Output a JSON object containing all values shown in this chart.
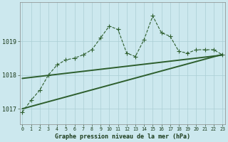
{
  "title": "Graphe pression niveau de la mer (hPa)",
  "xlabel_hours": [
    0,
    1,
    2,
    3,
    4,
    5,
    6,
    7,
    8,
    9,
    10,
    11,
    12,
    13,
    14,
    15,
    16,
    17,
    18,
    19,
    20,
    21,
    22,
    23
  ],
  "pressure_main": [
    1016.9,
    1017.25,
    1017.55,
    1018.0,
    1018.3,
    1018.45,
    1018.5,
    1018.6,
    1018.75,
    1019.1,
    1019.45,
    1019.35,
    1018.65,
    1018.55,
    1019.05,
    1019.75,
    1019.25,
    1019.15,
    1018.7,
    1018.65,
    1018.75,
    1018.75,
    1018.75,
    1018.6
  ],
  "pressure_line1": [
    1017.0,
    1017.07,
    1017.14,
    1017.21,
    1017.28,
    1017.35,
    1017.42,
    1017.49,
    1017.56,
    1017.63,
    1017.7,
    1017.77,
    1017.84,
    1017.91,
    1017.98,
    1018.05,
    1018.12,
    1018.19,
    1018.26,
    1018.33,
    1018.4,
    1018.47,
    1018.54,
    1018.61
  ],
  "pressure_line2": [
    1017.9,
    1017.93,
    1017.96,
    1017.99,
    1018.02,
    1018.05,
    1018.08,
    1018.11,
    1018.14,
    1018.17,
    1018.2,
    1018.23,
    1018.26,
    1018.29,
    1018.32,
    1018.35,
    1018.38,
    1018.41,
    1018.44,
    1018.47,
    1018.5,
    1018.53,
    1018.56,
    1018.59
  ],
  "ylim": [
    1016.55,
    1020.15
  ],
  "yticks": [
    1017,
    1018,
    1019
  ],
  "bg_color": "#cce8ee",
  "grid_color": "#aacdd4",
  "line_color": "#2d5e2d",
  "marker": "+",
  "marker_size": 4,
  "text_color": "#1a3a1a",
  "font_family": "monospace",
  "figwidth": 3.2,
  "figheight": 2.0,
  "dpi": 100
}
